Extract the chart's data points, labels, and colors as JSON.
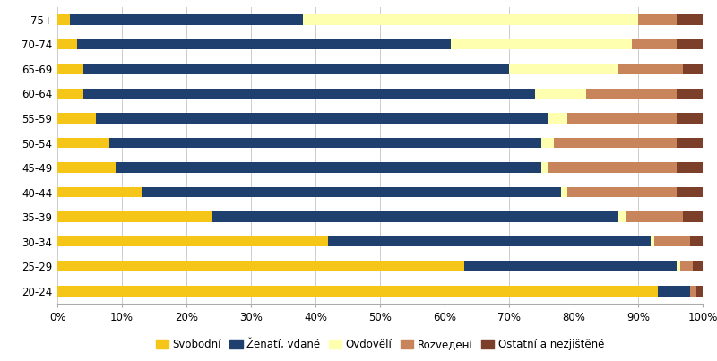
{
  "categories": [
    "20-24",
    "25-29",
    "30-34",
    "35-39",
    "40-44",
    "45-49",
    "50-54",
    "55-59",
    "60-64",
    "65-69",
    "70-74",
    "75+"
  ],
  "series": {
    "Svobodní": [
      93.0,
      63.0,
      42.0,
      24.0,
      13.0,
      9.0,
      8.0,
      6.0,
      4.0,
      4.0,
      3.0,
      2.0
    ],
    "Ženatí, vdané": [
      5.0,
      33.0,
      50.0,
      63.0,
      65.0,
      66.0,
      67.0,
      70.0,
      70.0,
      66.0,
      58.0,
      36.0
    ],
    "Ovdovělí": [
      0.0,
      0.5,
      0.5,
      1.0,
      1.0,
      1.0,
      2.0,
      3.0,
      8.0,
      17.0,
      28.0,
      52.0
    ],
    "Rozveденí": [
      1.0,
      2.0,
      5.5,
      9.0,
      17.0,
      20.0,
      19.0,
      17.0,
      14.0,
      10.0,
      7.0,
      6.0
    ],
    "Ostatní a nezjištěné": [
      1.0,
      1.5,
      2.0,
      3.0,
      4.0,
      4.0,
      4.0,
      4.0,
      4.0,
      3.0,
      4.0,
      4.0
    ]
  },
  "colors": {
    "Svobodní": "#F5C518",
    "Ženatí, vdané": "#1F3F6E",
    "Ovdovělí": "#FFFFB0",
    "Rozveденí": "#C8845A",
    "Ostatní a nezjištěné": "#7B3F2A"
  },
  "xlim": [
    0,
    100
  ],
  "xticks": [
    0,
    10,
    20,
    30,
    40,
    50,
    60,
    70,
    80,
    90,
    100
  ],
  "xticklabels": [
    "0%",
    "10%",
    "20%",
    "30%",
    "40%",
    "50%",
    "60%",
    "70%",
    "80%",
    "90%",
    "100%"
  ],
  "figsize": [
    8.0,
    4.03
  ],
  "dpi": 100,
  "background_color": "#ffffff",
  "bar_height": 0.42,
  "legend_order": [
    "Svobodní",
    "Ženatí, vdané",
    "Ovdovělí",
    "Rozveденí",
    "Ostatní a nezjištěné"
  ]
}
